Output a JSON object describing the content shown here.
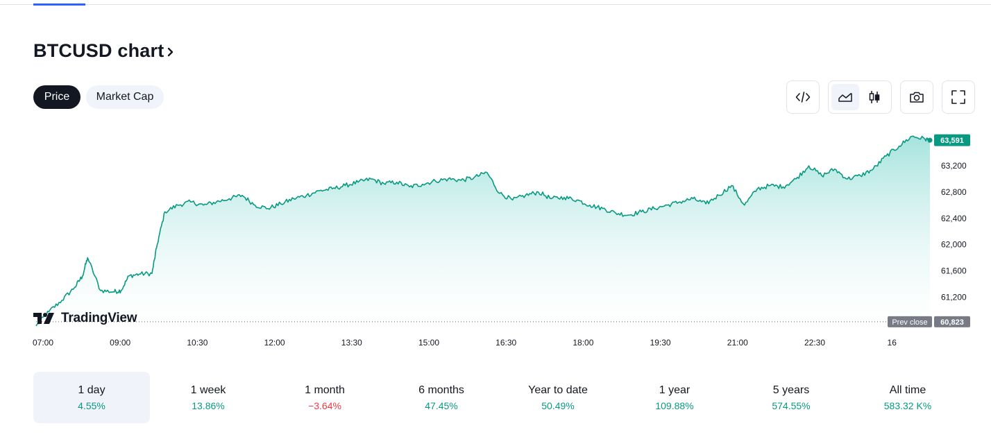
{
  "header": {
    "title": "BTCUSD chart",
    "tabs": [
      {
        "label": "Price",
        "active": true
      },
      {
        "label": "Market Cap",
        "active": false
      }
    ]
  },
  "toolbar": {
    "icons": [
      "embed-code-icon",
      "area-chart-icon",
      "candles-icon",
      "camera-icon",
      "fullscreen-icon"
    ]
  },
  "branding": {
    "logo_text": "TradingView"
  },
  "colors": {
    "line": "#089981",
    "area_top": "#a6e3de",
    "positive": "#089981",
    "negative": "#f23645",
    "dark": "#131722",
    "label_gray": "#787b86"
  },
  "chart_data": {
    "type": "area",
    "symbol": "BTCUSD",
    "x_ticks": [
      "07:00",
      "09:00",
      "10:30",
      "12:00",
      "13:30",
      "15:00",
      "16:30",
      "18:00",
      "19:30",
      "21:00",
      "22:30",
      "16"
    ],
    "y_ticks": [
      61200,
      61600,
      62000,
      62400,
      62800,
      63200
    ],
    "y_tick_labels": [
      "61,200",
      "61,600",
      "62,000",
      "62,400",
      "62,800",
      "63,200"
    ],
    "ylim": [
      60780,
      63740
    ],
    "last_price": 63591,
    "last_price_label": "63,591",
    "prev_close": 60823,
    "prev_close_label": "60,823",
    "prev_close_text": "Prev close",
    "series": [
      {
        "x_hours": [
          7.0,
          7.25,
          7.5,
          7.75,
          7.9,
          8.0,
          8.25,
          8.5,
          8.65,
          8.8,
          9.0,
          9.25,
          9.35,
          9.5,
          9.75,
          10.0,
          10.25,
          10.5,
          10.75,
          11.0,
          11.25,
          11.5,
          11.75,
          12.0,
          12.25,
          12.5,
          12.75,
          13.0,
          13.25,
          13.5,
          13.75,
          14.0,
          14.25,
          14.5,
          14.75,
          15.0,
          15.25,
          15.5,
          15.75,
          16.0,
          16.25,
          16.5,
          16.75,
          17.0,
          17.25,
          17.5,
          17.75,
          18.0,
          18.25,
          18.5,
          18.75,
          19.0,
          19.25,
          19.5,
          19.75,
          20.0,
          20.25,
          20.5,
          20.75,
          21.0,
          21.25,
          21.5,
          21.75,
          22.0,
          22.25,
          22.5,
          22.75,
          23.0,
          23.25,
          23.5,
          23.75,
          24.0,
          24.25,
          24.35
        ],
        "values": [
          60760,
          60980,
          61150,
          61350,
          61520,
          61800,
          61300,
          61280,
          61300,
          61520,
          61550,
          61560,
          62000,
          62500,
          62600,
          62650,
          62600,
          62650,
          62700,
          62750,
          62600,
          62550,
          62620,
          62700,
          62750,
          62820,
          62850,
          62900,
          62950,
          63000,
          62930,
          62950,
          62880,
          62920,
          62970,
          63000,
          62980,
          63020,
          63100,
          62780,
          62680,
          62750,
          62800,
          62700,
          62720,
          62680,
          62600,
          62550,
          62480,
          62450,
          62500,
          62550,
          62600,
          62650,
          62700,
          62620,
          62750,
          62900,
          62600,
          62850,
          62900,
          62880,
          63000,
          63200,
          63050,
          63150,
          63000,
          63050,
          63150,
          63350,
          63500,
          63650,
          63610,
          63591
        ]
      }
    ]
  },
  "periods": [
    {
      "label": "1 day",
      "value": "4.55%",
      "sign": "pos",
      "active": true
    },
    {
      "label": "1 week",
      "value": "13.86%",
      "sign": "pos",
      "active": false
    },
    {
      "label": "1 month",
      "value": "−3.64%",
      "sign": "neg",
      "active": false
    },
    {
      "label": "6 months",
      "value": "47.45%",
      "sign": "pos",
      "active": false
    },
    {
      "label": "Year to date",
      "value": "50.49%",
      "sign": "pos",
      "active": false
    },
    {
      "label": "1 year",
      "value": "109.88%",
      "sign": "pos",
      "active": false
    },
    {
      "label": "5 years",
      "value": "574.55%",
      "sign": "pos",
      "active": false
    },
    {
      "label": "All time",
      "value": "583.32 K%",
      "sign": "pos",
      "active": false
    }
  ]
}
